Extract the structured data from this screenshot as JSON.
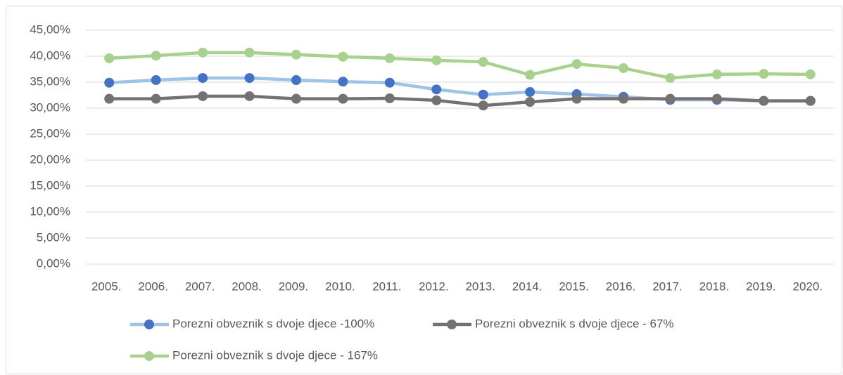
{
  "chart_data": {
    "type": "line",
    "categories": [
      "2005.",
      "2006.",
      "2007.",
      "2008.",
      "2009.",
      "2010.",
      "2011.",
      "2012.",
      "2013.",
      "2014.",
      "2015.",
      "2016.",
      "2017.",
      "2018.",
      "2019.",
      "2020."
    ],
    "series": [
      {
        "name": "Porezni obveznik s dvoje djece -100%",
        "color": "#9dc3e6",
        "marker_color": "#4472c4",
        "values": [
          34.9,
          35.4,
          35.8,
          35.8,
          35.4,
          35.1,
          34.9,
          33.6,
          32.6,
          33.1,
          32.7,
          32.2,
          31.6,
          31.6,
          31.4,
          31.4
        ]
      },
      {
        "name": "Porezni obveznik s dvoje djece - 67%",
        "color": "#767171",
        "marker_color": "#767171",
        "values": [
          31.8,
          31.8,
          32.3,
          32.3,
          31.8,
          31.8,
          31.9,
          31.5,
          30.5,
          31.2,
          31.8,
          31.8,
          31.8,
          31.8,
          31.4,
          31.4
        ]
      },
      {
        "name": "Porezni obveznik s dvoje djece - 167%",
        "color": "#a9d18e",
        "marker_color": "#a9d18e",
        "values": [
          39.6,
          40.1,
          40.7,
          40.7,
          40.3,
          39.9,
          39.6,
          39.2,
          38.9,
          36.4,
          38.5,
          37.7,
          35.8,
          36.5,
          36.6,
          36.5
        ]
      }
    ],
    "ylim": [
      0,
      45
    ],
    "yticks": [
      {
        "value": 0,
        "label": "0,00%"
      },
      {
        "value": 5,
        "label": "5,00%"
      },
      {
        "value": 10,
        "label": "10,00%"
      },
      {
        "value": 15,
        "label": "15,00%"
      },
      {
        "value": 20,
        "label": "20,00%"
      },
      {
        "value": 25,
        "label": "25,00%"
      },
      {
        "value": 30,
        "label": "30,00%"
      },
      {
        "value": 35,
        "label": "35,00%"
      },
      {
        "value": 40,
        "label": "40,00%"
      },
      {
        "value": 45,
        "label": "45,00%"
      }
    ],
    "grid": true,
    "legend": "bottom"
  }
}
